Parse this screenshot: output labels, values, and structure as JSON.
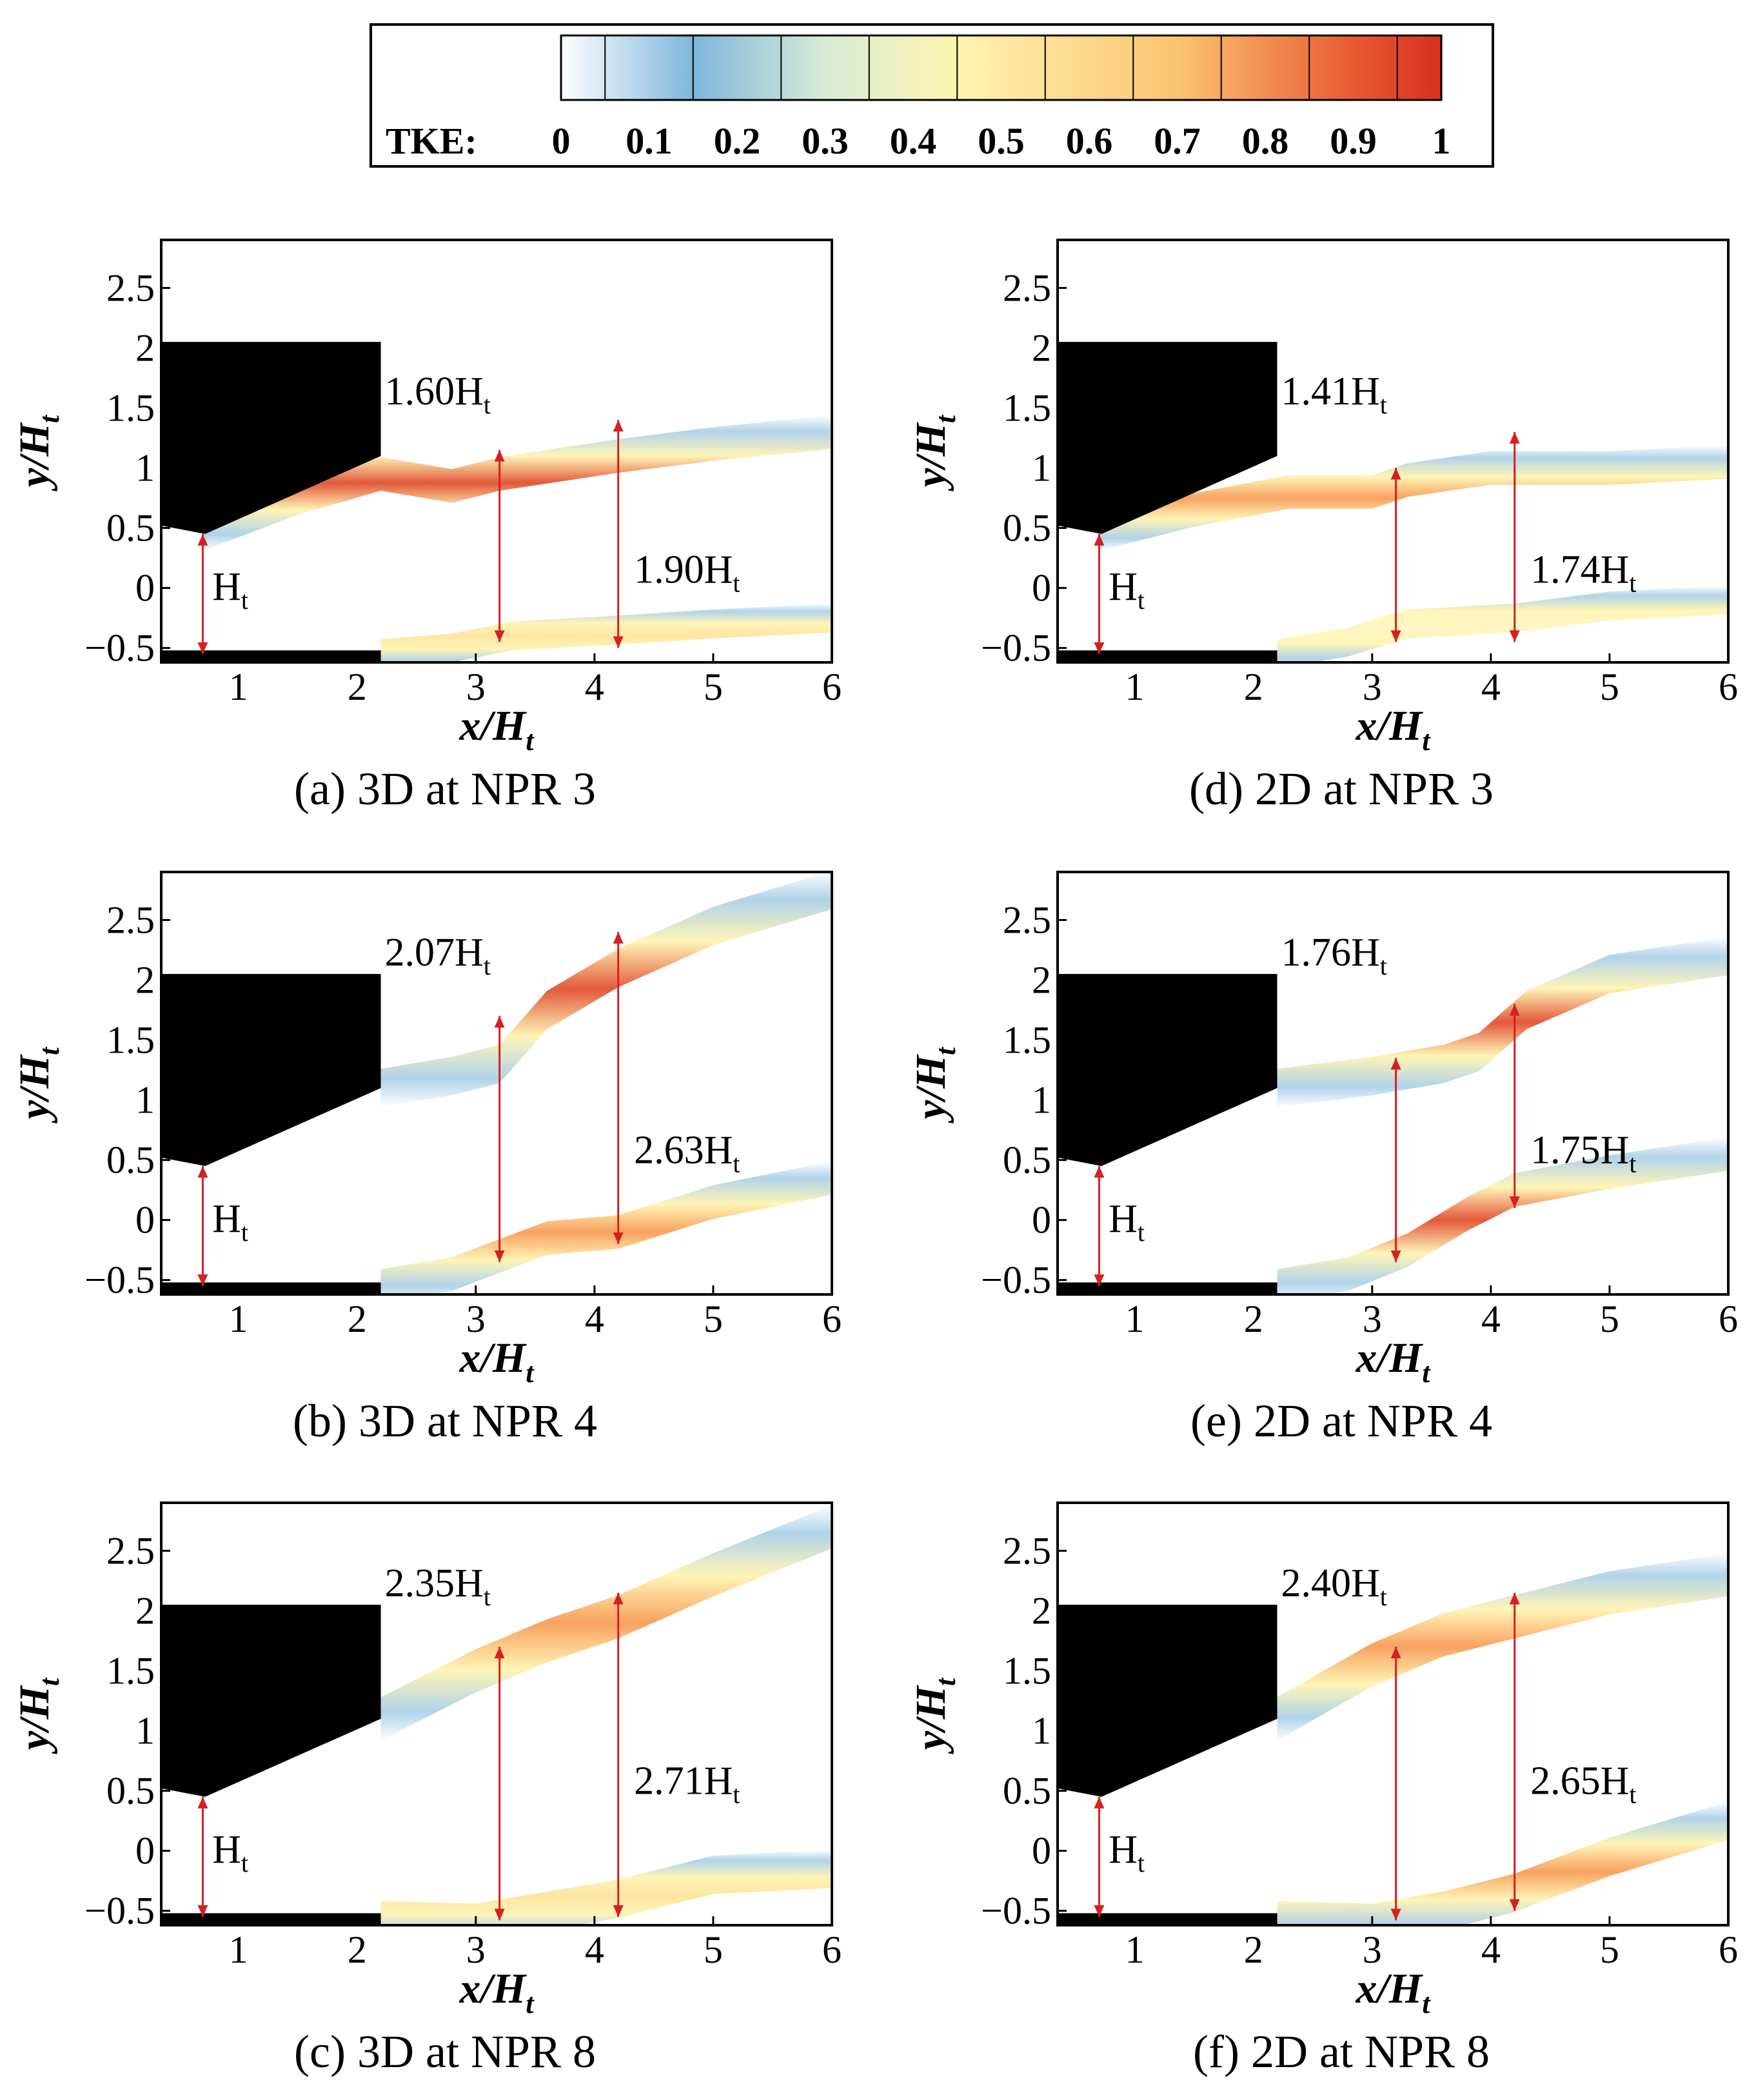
{
  "legend": {
    "label": "TKE:",
    "ticks": [
      "0",
      "0.1",
      "0.2",
      "0.3",
      "0.4",
      "0.5",
      "0.6",
      "0.7",
      "0.8",
      "0.9",
      "1"
    ],
    "colors": [
      "#ffffff",
      "#7fb6dc",
      "#d8ecd6",
      "#fff4b0",
      "#fbc472",
      "#e85a32",
      "#d7301f"
    ]
  },
  "axis_common": {
    "xlabel": "x/H",
    "xlabel_sub": "t",
    "ylabel": "y/H",
    "ylabel_sub": "t",
    "x_ticks": [
      "1",
      "2",
      "3",
      "4",
      "5",
      "6"
    ],
    "y_ticks": [
      "2.5",
      "2",
      "1.5",
      "1",
      "0.5",
      "0",
      "−0.5"
    ],
    "xlim": [
      0.35,
      6.0
    ],
    "ylim": [
      -0.62,
      2.9
    ]
  },
  "chart_data": [
    {
      "type": "heatmap",
      "caption": "(a) 3D at NPR 3",
      "ann_inner": {
        "value": "1.60H",
        "sub": "t",
        "x": 3.2,
        "y1": -0.45,
        "y2": 1.15
      },
      "ann_outer": {
        "value": "1.90H",
        "sub": "t",
        "x": 4.2,
        "y1": -0.5,
        "y2": 1.4
      },
      "ann_throat": {
        "value": "H",
        "sub": "t",
        "x": 0.7,
        "y1": -0.55,
        "y2": 0.45
      },
      "upper_shear": [
        [
          0.7,
          0.45
        ],
        [
          1.5,
          0.75
        ],
        [
          2.2,
          0.95
        ],
        [
          2.8,
          0.85
        ],
        [
          3.2,
          0.95
        ],
        [
          4.2,
          1.1
        ],
        [
          5,
          1.2
        ],
        [
          6,
          1.3
        ]
      ],
      "upper_peak": [
        [
          0.7,
          0
        ],
        [
          1.5,
          0.5
        ],
        [
          2.4,
          0.85
        ],
        [
          3,
          0.5
        ],
        [
          3.6,
          0.55
        ],
        [
          4.5,
          0.55
        ],
        [
          6,
          0.6
        ]
      ],
      "lower_shear": [
        [
          2.2,
          -0.55
        ],
        [
          2.8,
          -0.5
        ],
        [
          3.3,
          -0.4
        ],
        [
          4.2,
          -0.35
        ],
        [
          5,
          -0.3
        ],
        [
          6,
          -0.25
        ]
      ],
      "lower_peak": [
        [
          2.2,
          0
        ],
        [
          3,
          0.4
        ],
        [
          4,
          0.45
        ],
        [
          5,
          0.45
        ],
        [
          6,
          0.5
        ]
      ]
    },
    {
      "type": "heatmap",
      "caption": "(b) 3D at NPR 4",
      "ann_inner": {
        "value": "2.07H",
        "sub": "t",
        "x": 3.2,
        "y1": -0.35,
        "y2": 1.7
      },
      "ann_outer": {
        "value": "2.63H",
        "sub": "t",
        "x": 4.2,
        "y1": -0.2,
        "y2": 2.4
      },
      "ann_throat": {
        "value": "H",
        "sub": "t",
        "x": 0.7,
        "y1": -0.55,
        "y2": 0.45
      },
      "upper_shear": [
        [
          2.2,
          1.1
        ],
        [
          2.8,
          1.2
        ],
        [
          3.2,
          1.3
        ],
        [
          3.6,
          1.75
        ],
        [
          4.2,
          2.1
        ],
        [
          5,
          2.45
        ],
        [
          6,
          2.75
        ]
      ],
      "upper_peak": [
        [
          2.2,
          0.2
        ],
        [
          3,
          0.5
        ],
        [
          3.6,
          0.5
        ],
        [
          4.2,
          0.55
        ],
        [
          5,
          0.7
        ],
        [
          6,
          0.8
        ]
      ],
      "lower_shear": [
        [
          2.2,
          -0.55
        ],
        [
          2.8,
          -0.45
        ],
        [
          3.2,
          -0.3
        ],
        [
          3.6,
          -0.15
        ],
        [
          4.2,
          -0.1
        ],
        [
          5,
          0.15
        ],
        [
          6,
          0.35
        ]
      ],
      "lower_peak": [
        [
          2.2,
          0
        ],
        [
          3,
          0.45
        ],
        [
          3.6,
          0.5
        ],
        [
          4.5,
          0.6
        ],
        [
          5.5,
          0.7
        ],
        [
          6,
          0.75
        ]
      ]
    },
    {
      "type": "heatmap",
      "caption": "(c) 3D at NPR 8",
      "ann_inner": {
        "value": "2.35H",
        "sub": "t",
        "x": 3.2,
        "y1": -0.58,
        "y2": 1.7
      },
      "ann_outer": {
        "value": "2.71H",
        "sub": "t",
        "x": 4.2,
        "y1": -0.55,
        "y2": 2.15
      },
      "ann_throat": {
        "value": "H",
        "sub": "t",
        "x": 0.7,
        "y1": -0.55,
        "y2": 0.45
      },
      "upper_shear": [
        [
          2.2,
          1.1
        ],
        [
          3,
          1.5
        ],
        [
          3.6,
          1.75
        ],
        [
          4.2,
          1.95
        ],
        [
          5,
          2.3
        ],
        [
          6,
          2.7
        ]
      ],
      "upper_peak": [
        [
          2.2,
          0.1
        ],
        [
          3,
          0.4
        ],
        [
          4,
          0.55
        ],
        [
          5,
          0.6
        ],
        [
          6,
          0.7
        ]
      ],
      "lower_shear": [
        [
          2.2,
          -0.58
        ],
        [
          3,
          -0.6
        ],
        [
          3.6,
          -0.5
        ],
        [
          4.2,
          -0.4
        ],
        [
          5,
          -0.2
        ],
        [
          6,
          -0.15
        ]
      ],
      "lower_peak": [
        [
          2.2,
          0
        ],
        [
          3,
          0.3
        ],
        [
          4,
          0.5
        ],
        [
          5,
          0.5
        ],
        [
          6,
          0.45
        ]
      ]
    },
    {
      "type": "heatmap",
      "caption": "(d) 2D at NPR 3",
      "ann_inner": {
        "value": "1.41H",
        "sub": "t",
        "x": 3.2,
        "y1": -0.45,
        "y2": 1.0
      },
      "ann_outer": {
        "value": "1.74H",
        "sub": "t",
        "x": 4.2,
        "y1": -0.45,
        "y2": 1.3
      },
      "ann_throat": {
        "value": "H",
        "sub": "t",
        "x": 0.7,
        "y1": -0.55,
        "y2": 0.45
      },
      "upper_shear": [
        [
          0.7,
          0.45
        ],
        [
          1.5,
          0.65
        ],
        [
          2.3,
          0.8
        ],
        [
          3,
          0.8
        ],
        [
          3.3,
          0.9
        ],
        [
          4,
          1.0
        ],
        [
          5,
          1.0
        ],
        [
          6,
          1.05
        ]
      ],
      "upper_peak": [
        [
          0.7,
          0
        ],
        [
          1.5,
          0.5
        ],
        [
          2.4,
          0.75
        ],
        [
          3,
          0.55
        ],
        [
          3.6,
          0.45
        ],
        [
          4.5,
          0.4
        ],
        [
          6,
          0.4
        ]
      ],
      "lower_shear": [
        [
          2.2,
          -0.55
        ],
        [
          2.8,
          -0.45
        ],
        [
          3.3,
          -0.3
        ],
        [
          4.2,
          -0.25
        ],
        [
          5,
          -0.15
        ],
        [
          6,
          -0.1
        ]
      ],
      "lower_peak": [
        [
          2.2,
          0
        ],
        [
          3,
          0.4
        ],
        [
          4,
          0.4
        ],
        [
          5,
          0.35
        ],
        [
          6,
          0.35
        ]
      ]
    },
    {
      "type": "heatmap",
      "caption": "(e) 2D at NPR 4",
      "ann_inner": {
        "value": "1.76H",
        "sub": "t",
        "x": 3.2,
        "y1": -0.35,
        "y2": 1.35
      },
      "ann_outer": {
        "value": "1.75H",
        "sub": "t",
        "x": 4.2,
        "y1": 0.1,
        "y2": 1.8
      },
      "ann_throat": {
        "value": "H",
        "sub": "t",
        "x": 0.7,
        "y1": -0.55,
        "y2": 0.45
      },
      "upper_shear": [
        [
          2.2,
          1.1
        ],
        [
          3,
          1.2
        ],
        [
          3.6,
          1.3
        ],
        [
          3.9,
          1.4
        ],
        [
          4.3,
          1.75
        ],
        [
          5,
          2.05
        ],
        [
          6,
          2.2
        ]
      ],
      "upper_peak": [
        [
          2.2,
          0.2
        ],
        [
          3,
          0.6
        ],
        [
          3.6,
          0.65
        ],
        [
          4.3,
          0.75
        ],
        [
          5,
          0.9
        ],
        [
          6,
          0.9
        ]
      ],
      "lower_shear": [
        [
          2.2,
          -0.55
        ],
        [
          2.8,
          -0.45
        ],
        [
          3.3,
          -0.25
        ],
        [
          3.8,
          0.05
        ],
        [
          4.2,
          0.25
        ],
        [
          5,
          0.4
        ],
        [
          6,
          0.55
        ]
      ],
      "lower_peak": [
        [
          2.2,
          0
        ],
        [
          3,
          0.4
        ],
        [
          3.8,
          0.55
        ],
        [
          4.5,
          0.7
        ],
        [
          5.5,
          0.85
        ],
        [
          6,
          0.85
        ]
      ]
    },
    {
      "type": "heatmap",
      "caption": "(f) 2D at NPR 8",
      "ann_inner": {
        "value": "2.40H",
        "sub": "t",
        "x": 3.2,
        "y1": -0.58,
        "y2": 1.7
      },
      "ann_outer": {
        "value": "2.65H",
        "sub": "t",
        "x": 4.2,
        "y1": -0.5,
        "y2": 2.15
      },
      "ann_throat": {
        "value": "H",
        "sub": "t",
        "x": 0.7,
        "y1": -0.55,
        "y2": 0.45
      },
      "upper_shear": [
        [
          2.2,
          1.1
        ],
        [
          3,
          1.55
        ],
        [
          3.6,
          1.8
        ],
        [
          4.2,
          1.95
        ],
        [
          5,
          2.15
        ],
        [
          6,
          2.3
        ]
      ],
      "upper_peak": [
        [
          2.2,
          0.1
        ],
        [
          3,
          0.45
        ],
        [
          4,
          0.6
        ],
        [
          5,
          0.65
        ],
        [
          6,
          0.65
        ]
      ],
      "lower_shear": [
        [
          2.2,
          -0.58
        ],
        [
          3,
          -0.6
        ],
        [
          3.6,
          -0.5
        ],
        [
          4.2,
          -0.35
        ],
        [
          5,
          -0.05
        ],
        [
          6,
          0.25
        ]
      ],
      "lower_peak": [
        [
          2.2,
          0
        ],
        [
          3,
          0.3
        ],
        [
          4,
          0.45
        ],
        [
          5,
          0.6
        ],
        [
          6,
          0.65
        ]
      ]
    }
  ]
}
